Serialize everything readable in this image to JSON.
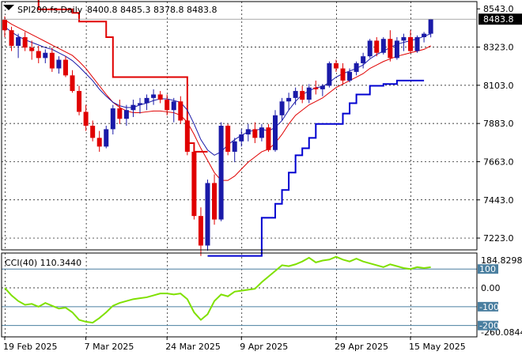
{
  "header": {
    "symbol": "SPI200.fs,Daily",
    "ohlc": "8400.8 8485.3 8378.8 8483.8"
  },
  "colors": {
    "background": "#ffffff",
    "grid": "#000000",
    "bull_candle": "#1a1aa8",
    "bear_candle": "#e00000",
    "ma_fast": "#1a1aa8",
    "ma_slow": "#e00000",
    "stop_upper": "#e00000",
    "stop_lower": "#0000d0",
    "cci_line": "#7fe000",
    "cci_level": "#4a7fa0",
    "last_price_box": "#000000"
  },
  "chart_data": [
    {
      "type": "candlestick",
      "title": "SPI200.fs,Daily",
      "y_ticks": [
        8543.0,
        8323.0,
        8103.0,
        7883.0,
        7663.0,
        7443.0,
        7223.0
      ],
      "y_tick_labels": [
        "8543.0",
        "8323.0",
        "8103.0",
        "7883.0",
        "7663.0",
        "7443.0",
        "7223.0"
      ],
      "ylim": [
        7155,
        8585
      ],
      "last_price_label": "8483.8",
      "last_price": 8483.8,
      "x_tick_labels": [
        "19 Feb 2025",
        "7 Mar 2025",
        "24 Mar 2025",
        "9 Apr 2025",
        "29 Apr 2025",
        "15 May 2025"
      ],
      "x_tick_bar_index": [
        0,
        12,
        24,
        35,
        49,
        60
      ],
      "grid": true,
      "ohlc": [
        [
          8480,
          8500,
          8380,
          8420
        ],
        [
          8420,
          8440,
          8300,
          8330
        ],
        [
          8330,
          8400,
          8260,
          8380
        ],
        [
          8380,
          8410,
          8300,
          8320
        ],
        [
          8320,
          8360,
          8250,
          8300
        ],
        [
          8300,
          8330,
          8230,
          8260
        ],
        [
          8260,
          8310,
          8230,
          8290
        ],
        [
          8290,
          8320,
          8180,
          8200
        ],
        [
          8200,
          8270,
          8170,
          8250
        ],
        [
          8250,
          8270,
          8150,
          8160
        ],
        [
          8160,
          8190,
          8060,
          8070
        ],
        [
          8070,
          8100,
          7930,
          7950
        ],
        [
          7950,
          7990,
          7840,
          7870
        ],
        [
          7870,
          7900,
          7780,
          7800
        ],
        [
          7800,
          7840,
          7720,
          7750
        ],
        [
          7750,
          7870,
          7740,
          7850
        ],
        [
          7850,
          7990,
          7820,
          7970
        ],
        [
          7970,
          8020,
          7880,
          7910
        ],
        [
          7910,
          7990,
          7870,
          7960
        ],
        [
          7960,
          8020,
          7920,
          7990
        ],
        [
          7990,
          8030,
          7940,
          8000
        ],
        [
          8000,
          8050,
          7960,
          8030
        ],
        [
          8030,
          8080,
          7990,
          8050
        ],
        [
          8050,
          8070,
          8000,
          8020
        ],
        [
          8020,
          8050,
          7930,
          7960
        ],
        [
          7960,
          8030,
          7890,
          8010
        ],
        [
          8010,
          8040,
          7880,
          7900
        ],
        [
          7900,
          7910,
          7700,
          7720
        ],
        [
          7720,
          7730,
          7330,
          7350
        ],
        [
          7350,
          7400,
          7120,
          7180
        ],
        [
          7180,
          7560,
          7150,
          7540
        ],
        [
          7540,
          7590,
          7300,
          7330
        ],
        [
          7330,
          7890,
          7320,
          7870
        ],
        [
          7870,
          7880,
          7700,
          7720
        ],
        [
          7720,
          7800,
          7660,
          7780
        ],
        [
          7780,
          7850,
          7750,
          7820
        ],
        [
          7820,
          7880,
          7780,
          7850
        ],
        [
          7850,
          7890,
          7770,
          7800
        ],
        [
          7800,
          7880,
          7780,
          7860
        ],
        [
          7860,
          7880,
          7720,
          7730
        ],
        [
          7730,
          7960,
          7720,
          7930
        ],
        [
          7930,
          8030,
          7900,
          8010
        ],
        [
          8010,
          8060,
          7960,
          8030
        ],
        [
          8030,
          8090,
          7990,
          8070
        ],
        [
          8070,
          8100,
          8000,
          8020
        ],
        [
          8020,
          8110,
          8000,
          8090
        ],
        [
          8090,
          8130,
          8050,
          8080
        ],
        [
          8080,
          8110,
          8040,
          8100
        ],
        [
          8100,
          8240,
          8090,
          8230
        ],
        [
          8230,
          8250,
          8180,
          8200
        ],
        [
          8200,
          8230,
          8110,
          8130
        ],
        [
          8130,
          8200,
          8120,
          8180
        ],
        [
          8180,
          8240,
          8160,
          8230
        ],
        [
          8230,
          8290,
          8200,
          8270
        ],
        [
          8270,
          8370,
          8260,
          8360
        ],
        [
          8360,
          8380,
          8270,
          8290
        ],
        [
          8290,
          8380,
          8280,
          8370
        ],
        [
          8370,
          8420,
          8240,
          8260
        ],
        [
          8260,
          8380,
          8250,
          8360
        ],
        [
          8360,
          8400,
          8300,
          8380
        ],
        [
          8380,
          8420,
          8290,
          8300
        ],
        [
          8300,
          8390,
          8290,
          8380
        ],
        [
          8380,
          8410,
          8350,
          8400
        ],
        [
          8400,
          8485.3,
          8378.8,
          8483.8
        ]
      ],
      "ma_fast": [
        8440,
        8410,
        8385,
        8365,
        8350,
        8335,
        8320,
        8310,
        8290,
        8270,
        8245,
        8210,
        8170,
        8130,
        8080,
        8040,
        8005,
        7985,
        7975,
        7975,
        7990,
        8000,
        8015,
        8025,
        8025,
        8015,
        8005,
        7960,
        7880,
        7790,
        7730,
        7700,
        7720,
        7760,
        7790,
        7815,
        7835,
        7845,
        7850,
        7840,
        7860,
        7900,
        7960,
        8010,
        8050,
        8070,
        8090,
        8095,
        8120,
        8150,
        8170,
        8185,
        8200,
        8220,
        8255,
        8280,
        8300,
        8320,
        8340,
        8350,
        8360,
        8370,
        8385,
        8400
      ],
      "ma_slow": [
        8480,
        8455,
        8435,
        8415,
        8395,
        8375,
        8355,
        8335,
        8315,
        8295,
        8275,
        8240,
        8200,
        8150,
        8100,
        8050,
        8005,
        7975,
        7955,
        7945,
        7945,
        7950,
        7955,
        7955,
        7950,
        7945,
        7930,
        7890,
        7820,
        7740,
        7670,
        7600,
        7555,
        7555,
        7580,
        7620,
        7660,
        7690,
        7720,
        7735,
        7770,
        7820,
        7880,
        7930,
        7960,
        7990,
        8010,
        8030,
        8060,
        8090,
        8110,
        8130,
        8150,
        8170,
        8200,
        8220,
        8240,
        8255,
        8270,
        8280,
        8290,
        8300,
        8310,
        8330
      ],
      "stop_upper": [
        [
          0,
          8600
        ],
        [
          2,
          8600
        ],
        [
          5,
          8540
        ],
        [
          10,
          8520
        ],
        [
          11,
          8470
        ],
        [
          15,
          8380
        ],
        [
          16,
          8150
        ],
        [
          24,
          8150
        ],
        [
          25,
          8150
        ],
        [
          26,
          8150
        ],
        [
          27,
          7770
        ],
        [
          28,
          7720
        ],
        [
          29,
          7720
        ],
        [
          30,
          7720
        ]
      ],
      "stop_lower": [
        [
          30,
          7120
        ],
        [
          31,
          7120
        ],
        [
          37,
          7120
        ],
        [
          38,
          7340
        ],
        [
          40,
          7420
        ],
        [
          41,
          7500
        ],
        [
          42,
          7600
        ],
        [
          43,
          7700
        ],
        [
          44,
          7740
        ],
        [
          45,
          7800
        ],
        [
          46,
          7880
        ],
        [
          47,
          7880
        ],
        [
          48,
          7880
        ],
        [
          49,
          7880
        ],
        [
          50,
          7940
        ],
        [
          51,
          8000
        ],
        [
          52,
          8050
        ],
        [
          53,
          8050
        ],
        [
          54,
          8100
        ],
        [
          55,
          8100
        ],
        [
          56,
          8110
        ],
        [
          57,
          8110
        ],
        [
          58,
          8130
        ],
        [
          59,
          8130
        ],
        [
          60,
          8130
        ],
        [
          61,
          8130
        ],
        [
          62,
          8130
        ]
      ]
    },
    {
      "type": "line",
      "title": "CCI(40) 110.3440",
      "name": "CCI(40)",
      "value_label": "110.3440",
      "ylim": [
        -260.0844,
        184.8298
      ],
      "top_label": "184.8298",
      "bottom_label": "-260.0844",
      "levels": [
        100,
        0,
        -100,
        -200
      ],
      "level_labels": [
        "100",
        "0.00",
        "-100",
        "-200"
      ],
      "values": [
        0,
        -40,
        -70,
        -90,
        -85,
        -100,
        -80,
        -95,
        -110,
        -105,
        -130,
        -170,
        -180,
        -185,
        -160,
        -130,
        -95,
        -80,
        -70,
        -60,
        -55,
        -50,
        -40,
        -30,
        -30,
        -35,
        -30,
        -60,
        -130,
        -170,
        -140,
        -70,
        -35,
        -45,
        -20,
        -15,
        -10,
        -5,
        30,
        60,
        90,
        120,
        115,
        125,
        140,
        160,
        135,
        145,
        150,
        165,
        150,
        140,
        155,
        140,
        130,
        120,
        110,
        125,
        115,
        105,
        100,
        110,
        105,
        110
      ]
    }
  ]
}
